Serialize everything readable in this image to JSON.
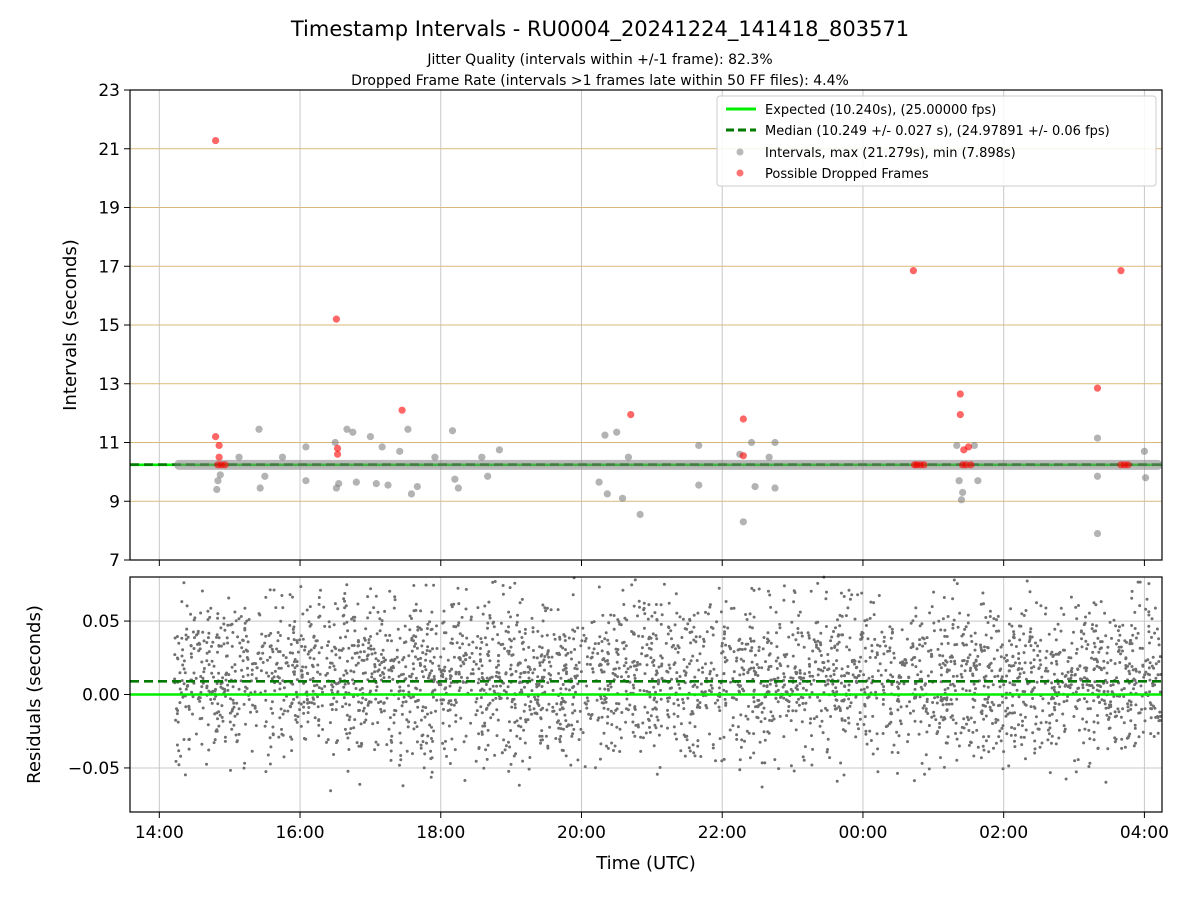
{
  "figure": {
    "title": "Timestamp Intervals - RU0004_20241224_141418_803571",
    "subtitle_1": "Jitter Quality (intervals within +/-1 frame): 82.3%",
    "subtitle_2": "Dropped Frame Rate (intervals >1 frames late within 50 FF files): 4.4%"
  },
  "chart_data": [
    {
      "type": "scatter",
      "xlabel": "",
      "ylabel": "Intervals (seconds)",
      "xlim": [
        "13:35",
        "04:15"
      ],
      "ylim": [
        7,
        23
      ],
      "yticks": [
        7,
        9,
        11,
        13,
        15,
        17,
        19,
        21,
        23
      ],
      "ytick_labels": [
        "7",
        "9",
        "11",
        "13",
        "15",
        "17",
        "19",
        "21",
        "23"
      ],
      "xticks": [
        "14:00",
        "16:00",
        "18:00",
        "20:00",
        "22:00",
        "00:00",
        "02:00",
        "04:00"
      ],
      "grid": "horizontal gridlines at y ticks (tan), vertical gridlines at x ticks (gray)",
      "legend_placement": "top-right",
      "legend": [
        "Expected (10.240s), (25.00000 fps)",
        "Median (10.249 +/- 0.027 s), (24.97891 +/- 0.06 fps)",
        "Intervals, max (21.279s), min (7.898s)",
        "Possible Dropped Frames"
      ],
      "reference_lines": [
        {
          "name": "Expected",
          "y": 10.24,
          "color": "#00ee00",
          "style": "solid"
        },
        {
          "name": "Median",
          "y": 10.249,
          "color": "#007a00",
          "style": "dashed"
        }
      ],
      "series": [
        {
          "name": "Intervals",
          "color": "#808080",
          "points": [
            {
              "x": "14:49",
              "y": 9.4
            },
            {
              "x": "14:50",
              "y": 9.7
            },
            {
              "x": "14:52",
              "y": 9.9
            },
            {
              "x": "15:08",
              "y": 10.5
            },
            {
              "x": "15:25",
              "y": 11.45
            },
            {
              "x": "15:26",
              "y": 9.45
            },
            {
              "x": "15:30",
              "y": 9.85
            },
            {
              "x": "15:45",
              "y": 10.5
            },
            {
              "x": "16:05",
              "y": 10.85
            },
            {
              "x": "16:05",
              "y": 9.7
            },
            {
              "x": "16:30",
              "y": 11.0
            },
            {
              "x": "16:31",
              "y": 9.45
            },
            {
              "x": "16:33",
              "y": 9.6
            },
            {
              "x": "16:40",
              "y": 11.45
            },
            {
              "x": "16:45",
              "y": 11.35
            },
            {
              "x": "16:48",
              "y": 9.65
            },
            {
              "x": "17:00",
              "y": 11.2
            },
            {
              "x": "17:05",
              "y": 9.6
            },
            {
              "x": "17:10",
              "y": 10.85
            },
            {
              "x": "17:15",
              "y": 9.55
            },
            {
              "x": "17:25",
              "y": 10.7
            },
            {
              "x": "17:32",
              "y": 11.45
            },
            {
              "x": "17:35",
              "y": 9.25
            },
            {
              "x": "17:40",
              "y": 9.5
            },
            {
              "x": "17:55",
              "y": 10.5
            },
            {
              "x": "18:10",
              "y": 11.4
            },
            {
              "x": "18:12",
              "y": 9.75
            },
            {
              "x": "18:15",
              "y": 9.45
            },
            {
              "x": "18:35",
              "y": 10.5
            },
            {
              "x": "18:40",
              "y": 9.85
            },
            {
              "x": "18:50",
              "y": 10.75
            },
            {
              "x": "20:15",
              "y": 9.65
            },
            {
              "x": "20:20",
              "y": 11.25
            },
            {
              "x": "20:22",
              "y": 9.25
            },
            {
              "x": "20:30",
              "y": 11.35
            },
            {
              "x": "20:35",
              "y": 9.1
            },
            {
              "x": "20:40",
              "y": 10.5
            },
            {
              "x": "20:50",
              "y": 8.55
            },
            {
              "x": "21:40",
              "y": 10.9
            },
            {
              "x": "21:40",
              "y": 9.55
            },
            {
              "x": "22:15",
              "y": 10.6
            },
            {
              "x": "22:18",
              "y": 8.3
            },
            {
              "x": "22:25",
              "y": 11.0
            },
            {
              "x": "22:28",
              "y": 9.5
            },
            {
              "x": "22:40",
              "y": 10.5
            },
            {
              "x": "22:45",
              "y": 11.0
            },
            {
              "x": "22:45",
              "y": 9.45
            },
            {
              "x": "01:20",
              "y": 10.9
            },
            {
              "x": "01:22",
              "y": 9.7
            },
            {
              "x": "01:25",
              "y": 9.3
            },
            {
              "x": "01:24",
              "y": 9.05
            },
            {
              "x": "01:35",
              "y": 10.9
            },
            {
              "x": "01:38",
              "y": 9.7
            },
            {
              "x": "03:20",
              "y": 11.15
            },
            {
              "x": "03:20",
              "y": 9.85
            },
            {
              "x": "03:20",
              "y": 7.9
            },
            {
              "x": "04:00",
              "y": 10.7
            },
            {
              "x": "04:01",
              "y": 9.8
            }
          ]
        },
        {
          "name": "Possible Dropped Frames",
          "color": "#ff0000",
          "points": [
            {
              "x": "14:48",
              "y": 21.279
            },
            {
              "x": "14:48",
              "y": 11.2
            },
            {
              "x": "14:51",
              "y": 10.9
            },
            {
              "x": "14:51",
              "y": 10.5
            },
            {
              "x": "14:50",
              "y": 10.24
            },
            {
              "x": "14:53",
              "y": 10.24
            },
            {
              "x": "14:56",
              "y": 10.24
            },
            {
              "x": "16:31",
              "y": 15.2
            },
            {
              "x": "16:32",
              "y": 10.8
            },
            {
              "x": "16:32",
              "y": 10.6
            },
            {
              "x": "17:27",
              "y": 12.1
            },
            {
              "x": "20:42",
              "y": 11.95
            },
            {
              "x": "22:18",
              "y": 11.8
            },
            {
              "x": "22:18",
              "y": 10.55
            },
            {
              "x": "00:43",
              "y": 16.85
            },
            {
              "x": "00:44",
              "y": 10.24
            },
            {
              "x": "00:46",
              "y": 10.24
            },
            {
              "x": "00:49",
              "y": 10.24
            },
            {
              "x": "00:52",
              "y": 10.24
            },
            {
              "x": "01:23",
              "y": 12.65
            },
            {
              "x": "01:23",
              "y": 11.95
            },
            {
              "x": "01:26",
              "y": 10.75
            },
            {
              "x": "01:30",
              "y": 10.85
            },
            {
              "x": "01:25",
              "y": 10.24
            },
            {
              "x": "01:28",
              "y": 10.24
            },
            {
              "x": "01:32",
              "y": 10.24
            },
            {
              "x": "03:20",
              "y": 12.85
            },
            {
              "x": "03:40",
              "y": 16.85
            },
            {
              "x": "03:40",
              "y": 10.24
            },
            {
              "x": "03:43",
              "y": 10.24
            },
            {
              "x": "03:46",
              "y": 10.24
            }
          ]
        }
      ]
    },
    {
      "type": "scatter",
      "xlabel": "Time (UTC)",
      "ylabel": "Residuals (seconds)",
      "xlim": [
        "13:35",
        "04:15"
      ],
      "ylim": [
        -0.08,
        0.08
      ],
      "yticks": [
        -0.05,
        0.0,
        0.05
      ],
      "ytick_labels": [
        "−0.05",
        "0.00",
        "0.05"
      ],
      "xticks": [
        "14:00",
        "16:00",
        "18:00",
        "20:00",
        "22:00",
        "00:00",
        "02:00",
        "04:00"
      ],
      "xtick_labels": [
        "14:00",
        "16:00",
        "18:00",
        "20:00",
        "22:00",
        "00:00",
        "02:00",
        "04:00"
      ],
      "grid": "on",
      "reference_lines": [
        {
          "name": "Expected",
          "y": 0.0,
          "color": "#00ee00",
          "style": "solid"
        },
        {
          "name": "Median",
          "y": 0.009,
          "color": "#007a00",
          "style": "dashed"
        }
      ],
      "series": [
        {
          "name": "Residuals",
          "color": "#707070",
          "x_range": [
            "14:13",
            "04:15"
          ],
          "y_range": [
            -0.08,
            0.08
          ]
        }
      ]
    }
  ]
}
